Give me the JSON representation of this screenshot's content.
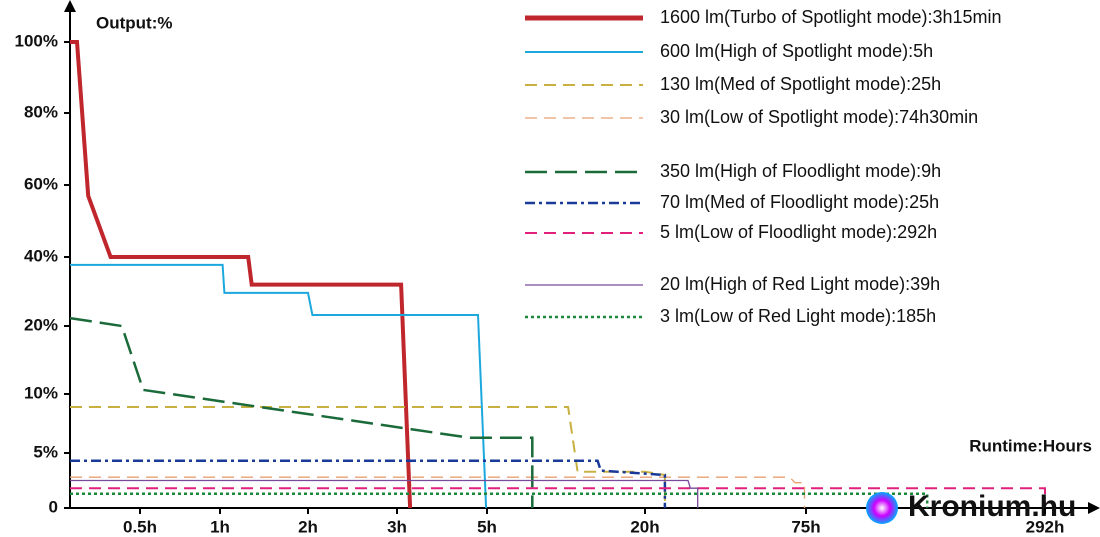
{
  "chart_data": {
    "type": "line",
    "y_label": "Output:%",
    "x_label": "Runtime:Hours",
    "watermark": "Kronium.hu",
    "xlim": [
      0,
      310
    ],
    "ylim": [
      0,
      100
    ],
    "xticks": [
      {
        "value": 0.5,
        "label": "0.5h"
      },
      {
        "value": 1,
        "label": "1h"
      },
      {
        "value": 2,
        "label": "2h"
      },
      {
        "value": 3,
        "label": "3h"
      },
      {
        "value": 5,
        "label": "5h"
      },
      {
        "value": 20,
        "label": "20h"
      },
      {
        "value": 75,
        "label": "75h"
      },
      {
        "value": 292,
        "label": "292h"
      }
    ],
    "yticks": [
      0,
      {
        "value": 5,
        "label": "5%"
      },
      {
        "value": 10,
        "label": "10%"
      },
      {
        "value": 20,
        "label": "20%"
      },
      {
        "value": 40,
        "label": "40%"
      },
      {
        "value": 60,
        "label": "60%"
      },
      {
        "value": 80,
        "label": "80%"
      },
      {
        "value": 100,
        "label": "100%"
      }
    ],
    "series": [
      {
        "name": "1600 lm(Turbo of Spotlight mode):3h15min",
        "color": "#c0272d",
        "style": "solid-thick",
        "x": [
          0,
          0.05,
          0.13,
          0.29,
          1.32,
          1.36,
          3.09,
          3.29
        ],
        "values": [
          100,
          100,
          57,
          40,
          40,
          32,
          32,
          0
        ]
      },
      {
        "name": "600 lm(High of Spotlight mode):5h",
        "color": "#1ca8dd",
        "style": "solid",
        "x": [
          0,
          1.03,
          1.05,
          2.0,
          2.05,
          4.8,
          4.98
        ],
        "values": [
          37.7,
          37.7,
          29.6,
          29.6,
          23.2,
          23.2,
          0
        ]
      },
      {
        "name": "130 lm(Med of Spotlight mode):25h",
        "color": "#c8b040",
        "style": "dashed",
        "x": [
          0,
          12.7,
          13.6,
          20,
          26.8,
          26.8
        ],
        "values": [
          8.9,
          8.9,
          3.3,
          3.3,
          3.0,
          0
        ]
      },
      {
        "name": "30 lm(Low of Spotlight mode):74h30min",
        "color": "#e8a070",
        "style": "dashed-thin",
        "x": [
          0,
          69.5,
          71.2,
          74.5,
          74.5
        ],
        "values": [
          2.8,
          2.8,
          2.3,
          2.3,
          0
        ]
      },
      {
        "name": "350 lm(High of Floodlight mode):9h",
        "color": "#1a6a3a",
        "style": "long-dashed",
        "x": [
          0,
          0.37,
          0.52,
          4.6,
          9.3,
          9.3
        ],
        "values": [
          22.3,
          20,
          10.6,
          6.3,
          6.3,
          0
        ]
      },
      {
        "name": "70 lm(Med of Floodlight mode):25h",
        "color": "#1a3a9a",
        "style": "dash-dot",
        "x": [
          0,
          15.5,
          15.8,
          26.8,
          26.8
        ],
        "values": [
          4.3,
          4.3,
          3.4,
          3.0,
          0
        ]
      },
      {
        "name": "5 lm(Low of Floodlight mode):292h",
        "color": "#e0207a",
        "style": "dashed",
        "x": [
          0,
          292,
          292
        ],
        "values": [
          1.8,
          1.8,
          0
        ]
      },
      {
        "name": "20 lm(High of Red Light mode):39h",
        "color": "#7a4a9a",
        "style": "solid-thin",
        "x": [
          0,
          34.7,
          35.5,
          38,
          38
        ],
        "values": [
          2.5,
          2.5,
          1.8,
          1.8,
          0
        ]
      },
      {
        "name": "3 lm(Low of Red Light mode):185h",
        "color": "#1a8a3a",
        "style": "dotted",
        "x": [
          0,
          185,
          185
        ],
        "values": [
          1.3,
          1.3,
          0
        ]
      }
    ]
  }
}
